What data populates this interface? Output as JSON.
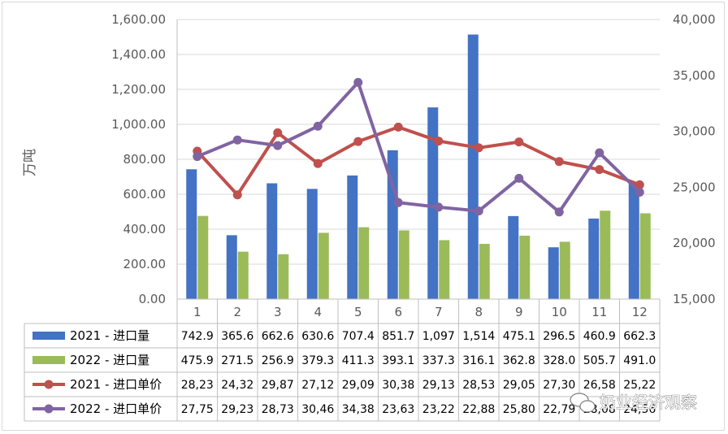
{
  "chart_data": {
    "type": "bar",
    "categories": [
      "1",
      "2",
      "3",
      "4",
      "5",
      "6",
      "7",
      "8",
      "9",
      "10",
      "11",
      "12"
    ],
    "ylabel": "万吨",
    "y_left": {
      "range": [
        0,
        1600
      ],
      "ticks": [
        "0.00",
        "200.00",
        "400.00",
        "600.00",
        "800.00",
        "1,000.00",
        "1,200.00",
        "1,400.00",
        "1,600.00"
      ]
    },
    "y_right": {
      "range": [
        15000,
        40000
      ],
      "ticks": [
        "15,000",
        "20,000",
        "25,000",
        "30,000",
        "35,000",
        "40,000"
      ]
    },
    "grid": true,
    "legend": "data-table",
    "series": [
      {
        "name": "2021 - 进口量",
        "kind": "bar",
        "axis": "left",
        "color": "#4472c4",
        "values": [
          742.9,
          365.6,
          662.6,
          630.6,
          707.4,
          851.7,
          1097,
          1514,
          475.1,
          296.5,
          460.9,
          662.3
        ],
        "labels": [
          "742.9",
          "365.6",
          "662.6",
          "630.6",
          "707.4",
          "851.7",
          "1,097",
          "1,514",
          "475.1",
          "296.5",
          "460.9",
          "662.3"
        ]
      },
      {
        "name": "2022 - 进口量",
        "kind": "bar",
        "axis": "left",
        "color": "#9bbb59",
        "values": [
          475.9,
          271.5,
          256.9,
          379.3,
          411.3,
          393.1,
          337.3,
          316.1,
          362.8,
          328.0,
          505.7,
          491.0
        ],
        "labels": [
          "475.9",
          "271.5",
          "256.9",
          "379.3",
          "411.3",
          "393.1",
          "337.3",
          "316.1",
          "362.8",
          "328.0",
          "505.7",
          "491.0"
        ]
      },
      {
        "name": "2021 - 进口单价",
        "kind": "line",
        "axis": "right",
        "color": "#c0504d",
        "values": [
          28230,
          24320,
          29870,
          27120,
          29090,
          30380,
          29130,
          28530,
          29050,
          27300,
          26580,
          25220
        ],
        "labels": [
          "28,23",
          "24,32",
          "29,87",
          "27,12",
          "29,09",
          "30,38",
          "29,13",
          "28,53",
          "29,05",
          "27,30",
          "26,58",
          "25,22"
        ]
      },
      {
        "name": "2022 - 进口单价",
        "kind": "line",
        "axis": "right",
        "color": "#8064a2",
        "values": [
          27750,
          29230,
          28730,
          30460,
          34380,
          23630,
          23220,
          22880,
          25800,
          22790,
          28080,
          24560
        ],
        "labels": [
          "27,75",
          "29,23",
          "28,73",
          "30,46",
          "34,38",
          "23,63",
          "23,22",
          "22,88",
          "25,80",
          "22,79",
          "28,08",
          "24,56"
        ]
      }
    ]
  },
  "watermark": "奶业经济观察"
}
